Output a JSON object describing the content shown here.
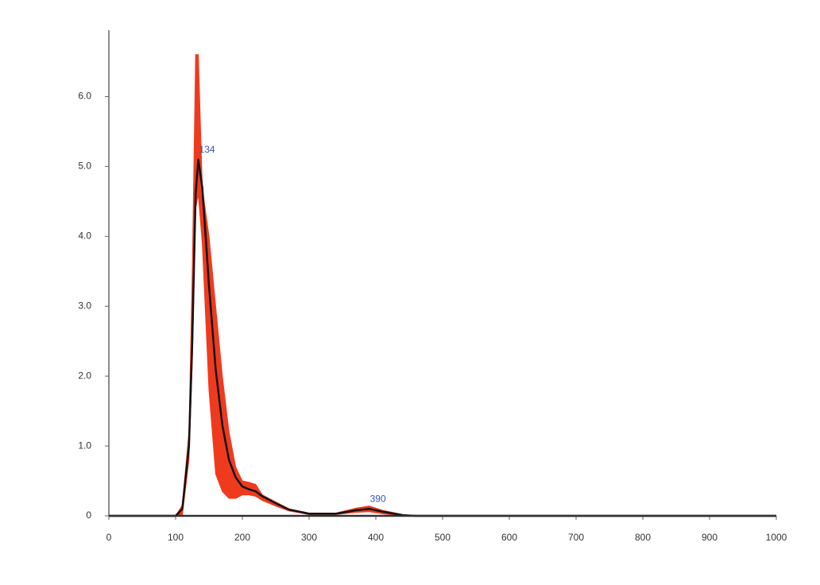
{
  "chart_data": {
    "type": "line",
    "x": [
      0,
      100,
      110,
      120,
      125,
      130,
      134,
      140,
      150,
      160,
      170,
      180,
      190,
      200,
      210,
      220,
      230,
      250,
      270,
      300,
      340,
      370,
      390,
      410,
      440,
      460,
      1000
    ],
    "values": [
      0,
      0,
      0.1,
      1.0,
      2.5,
      4.6,
      5.1,
      4.7,
      3.3,
      2.1,
      1.3,
      0.8,
      0.55,
      0.42,
      0.38,
      0.35,
      0.28,
      0.18,
      0.09,
      0.03,
      0.03,
      0.08,
      0.1,
      0.06,
      0.01,
      0,
      0
    ],
    "upper": [
      0,
      0,
      0.15,
      1.2,
      3.5,
      6.6,
      6.6,
      4.7,
      4.0,
      3.0,
      2.0,
      1.2,
      0.7,
      0.5,
      0.48,
      0.45,
      0.3,
      0.2,
      0.1,
      0.04,
      0.04,
      0.11,
      0.14,
      0.08,
      0.02,
      0,
      0
    ],
    "lower": [
      0,
      0,
      0,
      0.8,
      2.2,
      4.4,
      4.6,
      3.9,
      1.8,
      0.6,
      0.35,
      0.25,
      0.25,
      0.3,
      0.3,
      0.28,
      0.22,
      0.14,
      0.07,
      0.02,
      0.02,
      0.05,
      0.06,
      0.03,
      0,
      0,
      0
    ],
    "color": "#111111",
    "band_color": "#f03a1e",
    "annotations": [
      {
        "x": 134,
        "y": 5.1
      },
      {
        "x": 390,
        "y": 0.1
      }
    ],
    "annotation_color": "#3a55b0",
    "xlim": [
      0,
      1000
    ],
    "xticks": [
      0,
      100,
      200,
      300,
      400,
      500,
      600,
      700,
      800,
      900,
      1000
    ],
    "ylim": [
      0,
      6.95
    ],
    "yticks": [
      0,
      {
        "value": 1,
        "label": "1.0"
      },
      {
        "value": 2,
        "label": "2.0"
      },
      {
        "value": 3,
        "label": "3.0"
      },
      {
        "value": 4,
        "label": "4.0"
      },
      {
        "value": 5,
        "label": "5.0"
      },
      {
        "value": 6,
        "label": "6.0"
      }
    ]
  }
}
